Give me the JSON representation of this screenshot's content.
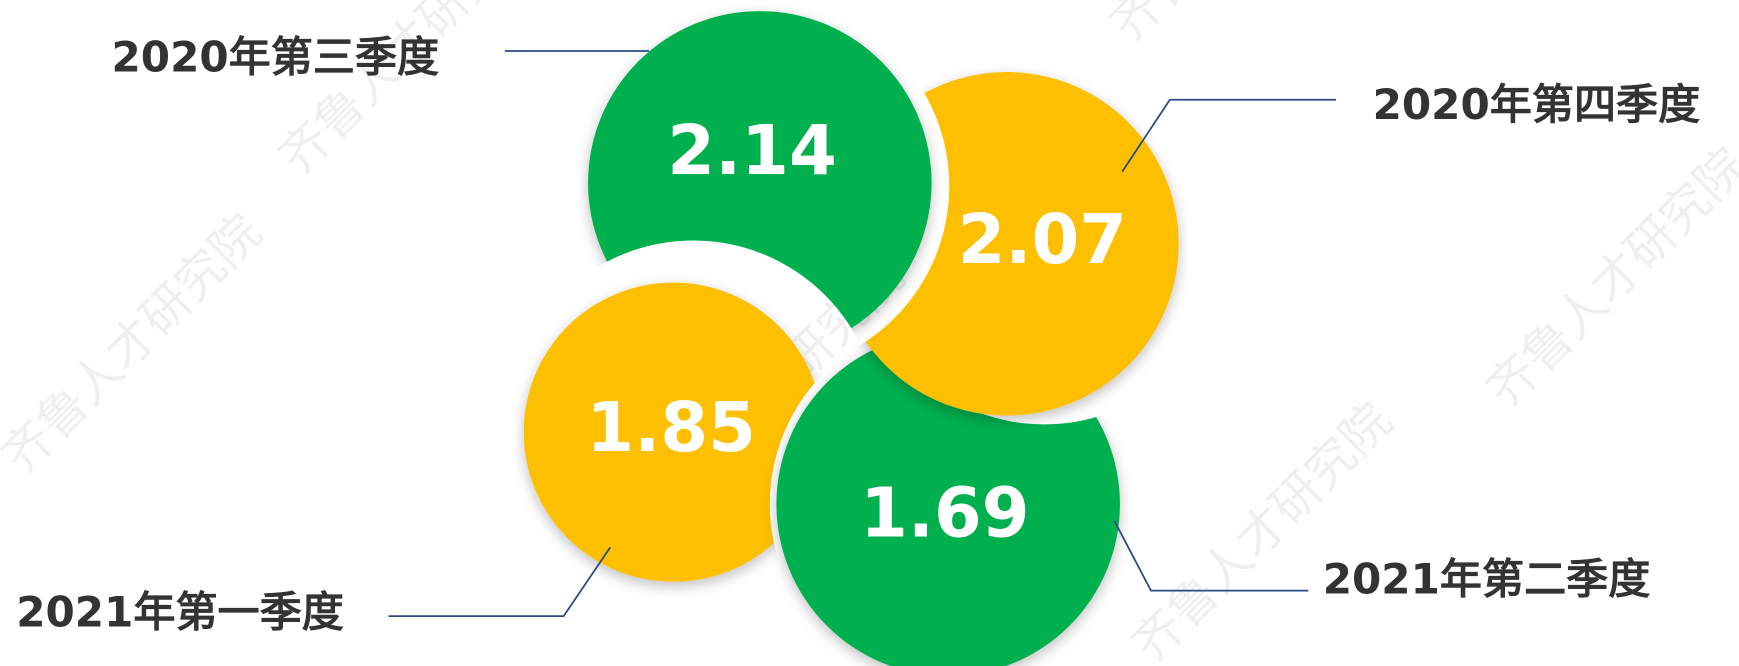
{
  "watermark": "齐鲁人才研究院",
  "items": [
    {
      "label": "2020年第三季度",
      "value": 2.14
    },
    {
      "label": "2020年第四季度",
      "value": 2.07
    },
    {
      "label": "2021年第一季度",
      "value": 1.85
    },
    {
      "label": "2021年第二季度",
      "value": 1.69
    }
  ]
}
